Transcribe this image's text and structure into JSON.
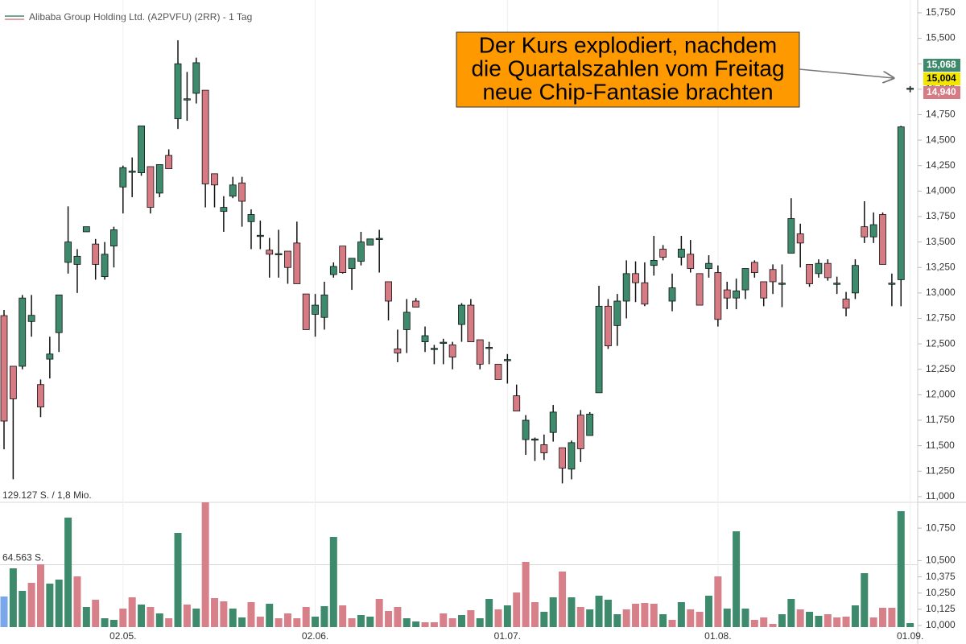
{
  "chart_data": {
    "type": "candlestick",
    "title": "Alibaba Group Holding Ltd. (A2PVFU) (2RR) - 1 Tag",
    "legend_colors": [
      "#3d8b6c",
      "#d88089"
    ],
    "up_color": "#3d8b6c",
    "down_color": "#d67a84",
    "categories": [
      null,
      null,
      null,
      null,
      null,
      null,
      null,
      null,
      null,
      null,
      null,
      null,
      null,
      "02.05.",
      null,
      null,
      null,
      null,
      null,
      null,
      null,
      null,
      null,
      null,
      null,
      null,
      null,
      null,
      null,
      null,
      null,
      null,
      null,
      null,
      "02.06.",
      null,
      null,
      null,
      null,
      null,
      null,
      null,
      null,
      null,
      null,
      null,
      null,
      null,
      null,
      null,
      null,
      null,
      null,
      null,
      null,
      "01.07.",
      null,
      null,
      null,
      null,
      null,
      null,
      null,
      null,
      null,
      null,
      null,
      null,
      null,
      null,
      null,
      null,
      null,
      null,
      null,
      null,
      null,
      null,
      "01.08.",
      null,
      null,
      null,
      null,
      null,
      null,
      null,
      null,
      null,
      null,
      null,
      null,
      null,
      null,
      null,
      null,
      null,
      null,
      null,
      null,
      "01.09."
    ],
    "open": [
      12.777,
      12.28,
      12.28,
      12.72,
      12.1,
      12.35,
      12.61,
      13.3,
      13.28,
      13.6,
      13.48,
      13.16,
      13.46,
      14.04,
      14.18,
      14.18,
      14.24,
      13.98,
      14.35,
      14.71,
      14.89,
      14.96,
      14.99,
      14.17,
      13.8,
      13.95,
      14.08,
      13.7,
      13.56,
      13.42,
      13.37,
      13.41,
      13.49,
      12.99,
      12.79,
      12.76,
      13.18,
      13.46,
      13.24,
      13.31,
      13.47,
      13.53,
      13.11,
      12.45,
      12.64,
      12.92,
      12.52,
      12.44,
      12.51,
      12.49,
      12.69,
      12.88,
      12.54,
      12.45,
      12.3,
      12.34,
      11.99,
      11.56,
      11.56,
      11.51,
      11.63,
      11.48,
      11.27,
      11.8,
      11.6,
      12.02,
      12.87,
      12.68,
      12.92,
      13.19,
      13.1,
      13.27,
      13.43,
      12.92,
      13.35,
      13.38,
      13.19,
      13.24,
      13.2,
      13.03,
      12.95,
      13.03,
      13.3,
      13.11,
      13.23,
      13.09,
      13.39,
      13.58,
      13.28,
      13.19,
      13.29,
      13.09,
      12.94,
      13.0,
      13.65,
      13.55,
      13.77,
      13.09,
      13.13,
      15.004
    ],
    "high": [
      12.833,
      12.28,
      12.98,
      12.98,
      12.15,
      12.57,
      12.98,
      13.85,
      13.43,
      13.65,
      13.53,
      13.5,
      13.65,
      14.25,
      14.33,
      14.64,
      14.24,
      14.26,
      14.41,
      15.48,
      15.17,
      15.31,
      14.99,
      14.17,
      13.95,
      14.14,
      14.14,
      13.82,
      13.71,
      13.54,
      13.62,
      13.41,
      13.7,
      12.99,
      12.99,
      13.11,
      13.3,
      13.46,
      13.34,
      13.6,
      13.53,
      13.62,
      13.11,
      12.64,
      12.94,
      12.95,
      12.67,
      12.49,
      12.55,
      12.52,
      12.9,
      12.94,
      12.54,
      12.52,
      12.3,
      12.4,
      12.1,
      11.8,
      11.58,
      11.61,
      11.9,
      11.48,
      11.55,
      11.85,
      11.83,
      13.07,
      12.94,
      12.99,
      13.32,
      13.31,
      13.3,
      13.56,
      13.47,
      13.19,
      13.56,
      13.52,
      13.19,
      13.37,
      13.27,
      13.11,
      13.14,
      13.24,
      13.32,
      13.11,
      13.28,
      13.28,
      13.93,
      13.68,
      13.28,
      13.33,
      13.33,
      13.16,
      13.01,
      13.33,
      13.9,
      13.79,
      13.79,
      13.19,
      14.64,
      15.03
    ],
    "low": [
      11.465,
      11.17,
      12.25,
      12.57,
      11.78,
      12.16,
      12.42,
      13.19,
      13.0,
      13.6,
      13.13,
      13.13,
      13.25,
      13.78,
      13.94,
      14.15,
      13.78,
      13.94,
      14.22,
      14.61,
      14.69,
      14.86,
      13.84,
      13.84,
      13.6,
      13.93,
      13.65,
      13.43,
      13.43,
      13.15,
      13.15,
      13.09,
      13.09,
      12.64,
      12.57,
      12.64,
      13.15,
      13.19,
      13.03,
      13.27,
      13.47,
      13.2,
      12.73,
      12.32,
      12.41,
      12.86,
      12.42,
      12.3,
      12.3,
      12.25,
      12.52,
      12.52,
      12.25,
      12.3,
      12.15,
      12.11,
      11.84,
      11.41,
      11.35,
      11.36,
      11.54,
      11.13,
      11.17,
      11.34,
      11.6,
      12.02,
      12.45,
      12.48,
      12.75,
      12.91,
      12.87,
      13.17,
      13.32,
      12.82,
      13.27,
      13.2,
      12.88,
      13.15,
      12.67,
      12.84,
      12.84,
      12.94,
      13.15,
      12.87,
      12.99,
      12.86,
      13.39,
      13.25,
      13.06,
      13.15,
      13.12,
      12.99,
      12.77,
      12.94,
      13.49,
      13.49,
      13.28,
      12.87,
      12.87,
      14.97
    ],
    "close": [
      11.742,
      11.96,
      12.95,
      12.78,
      11.88,
      12.4,
      12.98,
      13.5,
      13.36,
      13.65,
      13.28,
      13.38,
      13.62,
      14.23,
      14.19,
      14.64,
      13.84,
      14.26,
      14.22,
      15.25,
      14.9,
      15.26,
      14.07,
      14.06,
      13.84,
      14.06,
      13.9,
      13.77,
      13.56,
      13.38,
      13.38,
      13.25,
      13.09,
      12.64,
      12.88,
      12.98,
      13.26,
      13.2,
      13.34,
      13.5,
      13.53,
      13.53,
      12.92,
      12.41,
      12.81,
      12.86,
      12.58,
      12.45,
      12.51,
      12.37,
      12.88,
      12.52,
      12.3,
      12.46,
      12.15,
      12.34,
      11.84,
      11.75,
      11.56,
      11.43,
      11.83,
      11.28,
      11.53,
      11.47,
      11.81,
      12.87,
      12.48,
      12.92,
      13.19,
      13.1,
      12.89,
      13.32,
      13.35,
      13.05,
      13.43,
      13.24,
      12.88,
      13.29,
      12.74,
      12.95,
      13.02,
      13.24,
      13.2,
      12.95,
      13.11,
      13.09,
      13.73,
      13.49,
      13.09,
      13.29,
      13.15,
      13.09,
      12.85,
      13.27,
      13.55,
      13.67,
      13.28,
      13.09,
      14.63,
      15.004
    ],
    "ylim": [
      10.944,
      15.876
    ],
    "yticks": [
      {
        "value": 15.75,
        "label": "15,750"
      },
      {
        "value": 15.5,
        "label": "15,500"
      },
      {
        "value": 15.25,
        "label": "15,250"
      },
      {
        "value": 15.0,
        "label": "15,000"
      },
      {
        "value": 14.75,
        "label": "14,750"
      },
      {
        "value": 14.5,
        "label": "14,500"
      },
      {
        "value": 14.25,
        "label": "14,250"
      },
      {
        "value": 14.0,
        "label": "14,000"
      },
      {
        "value": 13.75,
        "label": "13,750"
      },
      {
        "value": 13.5,
        "label": "13,500"
      },
      {
        "value": 13.25,
        "label": "13,250"
      },
      {
        "value": 13.0,
        "label": "13,000"
      },
      {
        "value": 12.75,
        "label": "12,750"
      },
      {
        "value": 12.5,
        "label": "12,500"
      },
      {
        "value": 12.25,
        "label": "12,250"
      },
      {
        "value": 12.0,
        "label": "12,000"
      },
      {
        "value": 11.75,
        "label": "11,750"
      },
      {
        "value": 11.5,
        "label": "11,500"
      },
      {
        "value": 11.25,
        "label": "11,250"
      },
      {
        "value": 11.0,
        "label": "11,000"
      }
    ],
    "price_labels": [
      {
        "value": 15.068,
        "label": "15,068",
        "color": "#3d8b6c",
        "text_color": "#ffffff"
      },
      {
        "value": 15.004,
        "label": "15,004",
        "color": "#f2e600",
        "text_color": "#000000"
      },
      {
        "value": 14.94,
        "label": "14,940",
        "color": "#d67a84",
        "text_color": "#ffffff"
      }
    ],
    "volume": [
      31654,
      60809,
      37486,
      45817,
      64978,
      44983,
      49150,
      113302,
      52484,
      20827,
      28325,
      9163,
      7498,
      19161,
      30823,
      23326,
      20827,
      14162,
      9163,
      97469,
      23326,
      19161,
      129127,
      29990,
      26658,
      19161,
      9997,
      25825,
      10830,
      24159,
      9163,
      14162,
      9163,
      20827,
      10830,
      21660,
      93304,
      22493,
      9163,
      12496,
      10830,
      29158,
      16662,
      20827,
      9163,
      5832,
      4998,
      4998,
      14162,
      9163,
      12496,
      17495,
      9163,
      29158,
      18328,
      22493,
      35822,
      67479,
      25825,
      15829,
      30823,
      57482,
      30823,
      20827,
      18328,
      32490,
      28325,
      13329,
      18328,
      24159,
      24992,
      24159,
      13329,
      7498,
      25825,
      18328,
      15829,
      32490,
      52484,
      19161,
      99136,
      19161,
      7498,
      9997,
      3332,
      13329,
      29158,
      18328,
      15829,
      11663,
      13329,
      9997,
      10830,
      22493,
      55815,
      9997,
      19994,
      19994,
      119962,
      4165
    ],
    "volume_colors": [
      "#7aa6ea",
      "#3d8b6c",
      "#3d8b6c",
      "#d88089",
      "#d88089",
      "#3d8b6c",
      "#3d8b6c",
      "#3d8b6c",
      "#d88089",
      "#3d8b6c",
      "#d88089",
      "#3d8b6c",
      "#3d8b6c",
      "#d88089",
      "#d88089",
      "#3d8b6c",
      "#d88089",
      "#3d8b6c",
      "#d88089",
      "#3d8b6c",
      "#d88089",
      "#3d8b6c",
      "#d88089",
      "#d88089",
      "#d88089",
      "#3d8b6c",
      "#3d8b6c",
      "#d88089",
      "#d88089",
      "#3d8b6c",
      "#d88089",
      "#d88089",
      "#d88089",
      "#d88089",
      "#3d8b6c",
      "#3d8b6c",
      "#3d8b6c",
      "#d88089",
      "#d88089",
      "#3d8b6c",
      "#3d8b6c",
      "#d88089",
      "#d88089",
      "#d88089",
      "#3d8b6c",
      "#3d8b6c",
      "#d88089",
      "#d88089",
      "#d88089",
      "#d88089",
      "#3d8b6c",
      "#d88089",
      "#3d8b6c",
      "#3d8b6c",
      "#d88089",
      "#3d8b6c",
      "#d88089",
      "#d88089",
      "#d88089",
      "#3d8b6c",
      "#3d8b6c",
      "#d88089",
      "#3d8b6c",
      "#d88089",
      "#3d8b6c",
      "#3d8b6c",
      "#3d8b6c",
      "#3d8b6c",
      "#d88089",
      "#d88089",
      "#d88089",
      "#d88089",
      "#3d8b6c",
      "#d88089",
      "#3d8b6c",
      "#d88089",
      "#d88089",
      "#3d8b6c",
      "#d88089",
      "#3d8b6c",
      "#3d8b6c",
      "#3d8b6c",
      "#d88089",
      "#d88089",
      "#d88089",
      "#3d8b6c",
      "#3d8b6c",
      "#d88089",
      "#3d8b6c",
      "#3d8b6c",
      "#d88089",
      "#d88089",
      "#d88089",
      "#3d8b6c",
      "#3d8b6c",
      "#d88089",
      "#d88089",
      "#d88089",
      "#3d8b6c",
      "#3d8b6c"
    ],
    "vlim": [
      0,
      129127
    ],
    "vticks": [
      {
        "value": 129127,
        "label": "129.127 S. / 1,8 Mio."
      },
      {
        "value": 64563,
        "label": "64.563 S."
      }
    ],
    "y2lim": [
      9.988,
      10.949
    ],
    "y2ticks": [
      {
        "value": 10.75,
        "label": "10,750"
      },
      {
        "value": 10.5,
        "label": "10,500"
      },
      {
        "value": 10.375,
        "label": "10,375"
      },
      {
        "value": 10.25,
        "label": "10,250"
      },
      {
        "value": 10.125,
        "label": "10,125"
      },
      {
        "value": 10.0,
        "label": "10,000"
      }
    ],
    "annotation": {
      "lines": [
        "Der Kurs explodiert, nachdem",
        "die Quartalszahlen vom Freitag",
        "neue Chip-Fantasie brachten"
      ],
      "color": "#ff9900"
    }
  }
}
